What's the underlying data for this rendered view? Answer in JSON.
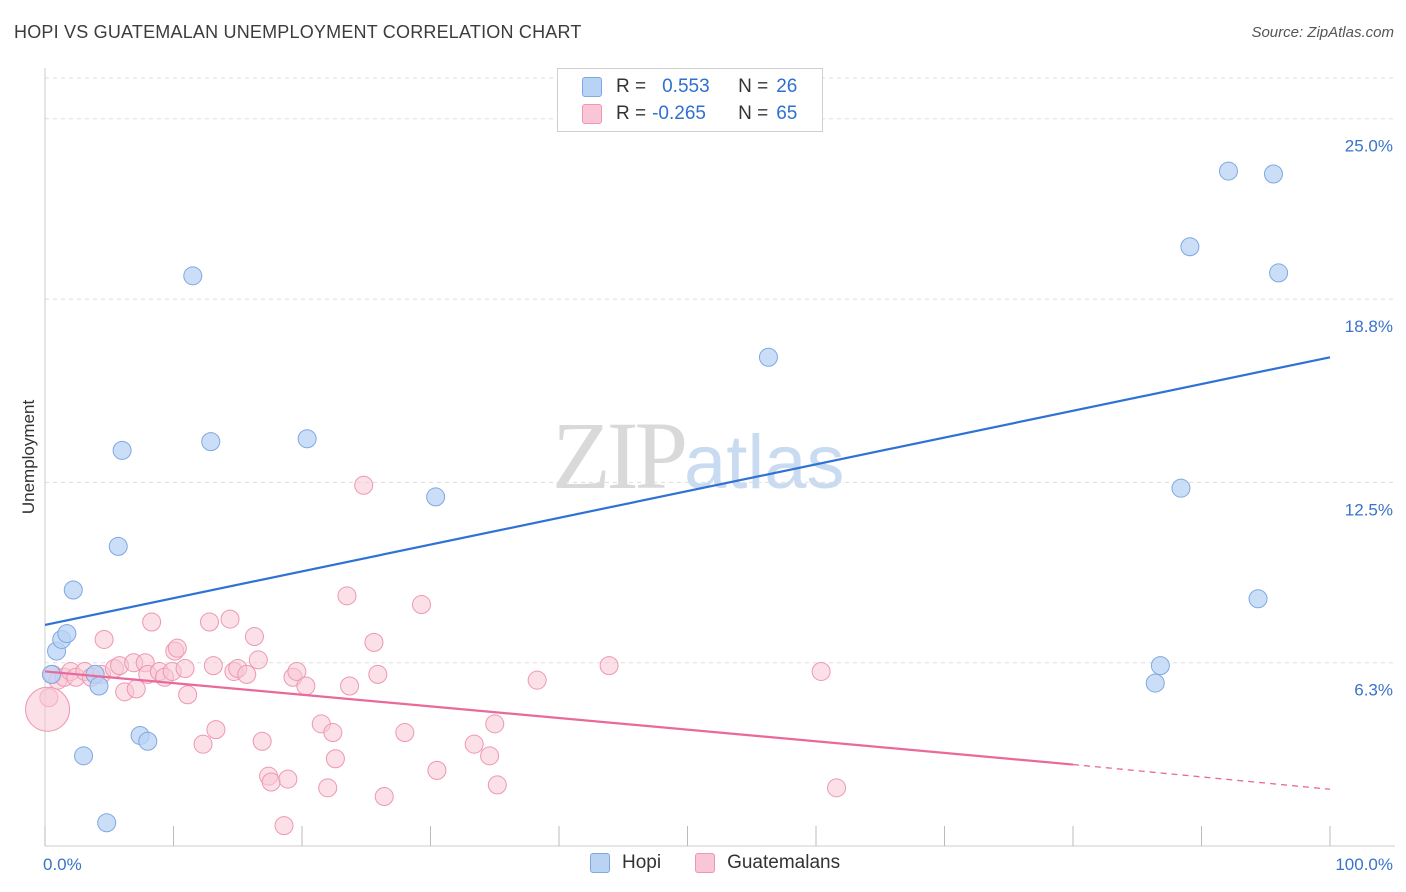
{
  "title": "HOPI VS GUATEMALAN UNEMPLOYMENT CORRELATION CHART",
  "source": "Source: ZipAtlas.com",
  "watermark": {
    "zip": "ZIP",
    "atlas": "atlas"
  },
  "legend": {
    "r_label": "R =",
    "n_label": "N =",
    "hopi": {
      "r": "0.553",
      "n": "26"
    },
    "guatemalans": {
      "r": "-0.265",
      "n": "65"
    }
  },
  "bottom_legend": {
    "hopi": "Hopi",
    "guatemalans": "Guatemalans"
  },
  "colors": {
    "hopi_fill": "#b9d3f5",
    "hopi_stroke": "#7fa8e0",
    "hopi_line": "#2f72d6",
    "guat_fill": "#f8c6d6",
    "guat_stroke": "#ee97b3",
    "guat_line": "#e8699a",
    "tick_text": "#3a73c9",
    "grid": "#dddddd"
  },
  "chart_data": {
    "type": "scatter",
    "title": "HOPI VS GUATEMALAN UNEMPLOYMENT CORRELATION CHART",
    "xlabel": "",
    "ylabel": "Unemployment",
    "xlim": [
      0,
      100
    ],
    "ylim": [
      0,
      26.4
    ],
    "y_ticks": [
      {
        "value": 6.3,
        "label": "6.3%"
      },
      {
        "value": 12.5,
        "label": "12.5%"
      },
      {
        "value": 18.8,
        "label": "18.8%"
      },
      {
        "value": 25.0,
        "label": "25.0%"
      }
    ],
    "x_tick_labels": {
      "min": "0.0%",
      "max": "100.0%"
    },
    "series": [
      {
        "name": "Hopi",
        "points": [
          [
            0.5,
            5.9
          ],
          [
            0.9,
            6.7
          ],
          [
            1.3,
            7.1
          ],
          [
            1.7,
            7.3
          ],
          [
            2.2,
            8.8
          ],
          [
            3.0,
            3.1
          ],
          [
            3.9,
            5.9
          ],
          [
            4.2,
            5.5
          ],
          [
            4.8,
            0.8
          ],
          [
            5.7,
            10.3
          ],
          [
            6.0,
            13.6
          ],
          [
            7.4,
            3.8
          ],
          [
            8.0,
            3.6
          ],
          [
            11.5,
            19.6
          ],
          [
            12.9,
            13.9
          ],
          [
            20.4,
            14.0
          ],
          [
            30.4,
            12.0
          ],
          [
            56.3,
            16.8
          ],
          [
            86.4,
            5.6
          ],
          [
            86.8,
            6.2
          ],
          [
            88.4,
            12.3
          ],
          [
            89.1,
            20.6
          ],
          [
            92.1,
            23.2
          ],
          [
            94.4,
            8.5
          ],
          [
            95.6,
            23.1
          ],
          [
            96.0,
            19.7
          ]
        ],
        "trend": {
          "x1": 0,
          "y1": 7.6,
          "x2": 100,
          "y2": 16.8
        }
      },
      {
        "name": "Guatemalans",
        "points": [
          [
            0.3,
            5.1
          ],
          [
            0.6,
            5.9
          ],
          [
            1.0,
            5.7
          ],
          [
            1.5,
            5.8
          ],
          [
            2.0,
            6.0
          ],
          [
            2.4,
            5.8
          ],
          [
            3.1,
            6.0
          ],
          [
            3.6,
            5.8
          ],
          [
            4.4,
            5.9
          ],
          [
            4.6,
            7.1
          ],
          [
            5.4,
            6.1
          ],
          [
            5.8,
            6.2
          ],
          [
            6.2,
            5.3
          ],
          [
            6.9,
            6.3
          ],
          [
            7.1,
            5.4
          ],
          [
            7.8,
            6.3
          ],
          [
            8.0,
            5.9
          ],
          [
            8.3,
            7.7
          ],
          [
            8.9,
            6.0
          ],
          [
            9.3,
            5.8
          ],
          [
            9.9,
            6.0
          ],
          [
            10.1,
            6.7
          ],
          [
            10.3,
            6.8
          ],
          [
            10.9,
            6.1
          ],
          [
            11.1,
            5.2
          ],
          [
            12.3,
            3.5
          ],
          [
            12.8,
            7.7
          ],
          [
            13.1,
            6.2
          ],
          [
            13.3,
            4.0
          ],
          [
            14.4,
            7.8
          ],
          [
            14.7,
            6.0
          ],
          [
            15.0,
            6.1
          ],
          [
            15.7,
            5.9
          ],
          [
            16.3,
            7.2
          ],
          [
            16.6,
            6.4
          ],
          [
            16.9,
            3.6
          ],
          [
            17.4,
            2.4
          ],
          [
            17.6,
            2.2
          ],
          [
            18.6,
            0.7
          ],
          [
            18.9,
            2.3
          ],
          [
            19.3,
            5.8
          ],
          [
            19.6,
            6.0
          ],
          [
            20.3,
            5.5
          ],
          [
            21.5,
            4.2
          ],
          [
            22.0,
            2.0
          ],
          [
            22.4,
            3.9
          ],
          [
            22.6,
            3.0
          ],
          [
            23.5,
            8.6
          ],
          [
            23.7,
            5.5
          ],
          [
            24.8,
            12.4
          ],
          [
            25.6,
            7.0
          ],
          [
            25.9,
            5.9
          ],
          [
            26.4,
            1.7
          ],
          [
            28.0,
            3.9
          ],
          [
            29.3,
            8.3
          ],
          [
            30.5,
            2.6
          ],
          [
            33.4,
            3.5
          ],
          [
            34.6,
            3.1
          ],
          [
            35.0,
            4.2
          ],
          [
            35.2,
            2.1
          ],
          [
            38.3,
            5.7
          ],
          [
            43.9,
            6.2
          ],
          [
            60.4,
            6.0
          ],
          [
            61.6,
            2.0
          ],
          [
            0.2,
            4.7
          ]
        ],
        "trend": {
          "x1": 0,
          "y1": 6.0,
          "x2": 80,
          "y2": 2.8
        },
        "trend_dashed_extension": {
          "x1": 80,
          "y1": 2.8,
          "x2": 100,
          "y2": 1.95
        }
      }
    ]
  }
}
